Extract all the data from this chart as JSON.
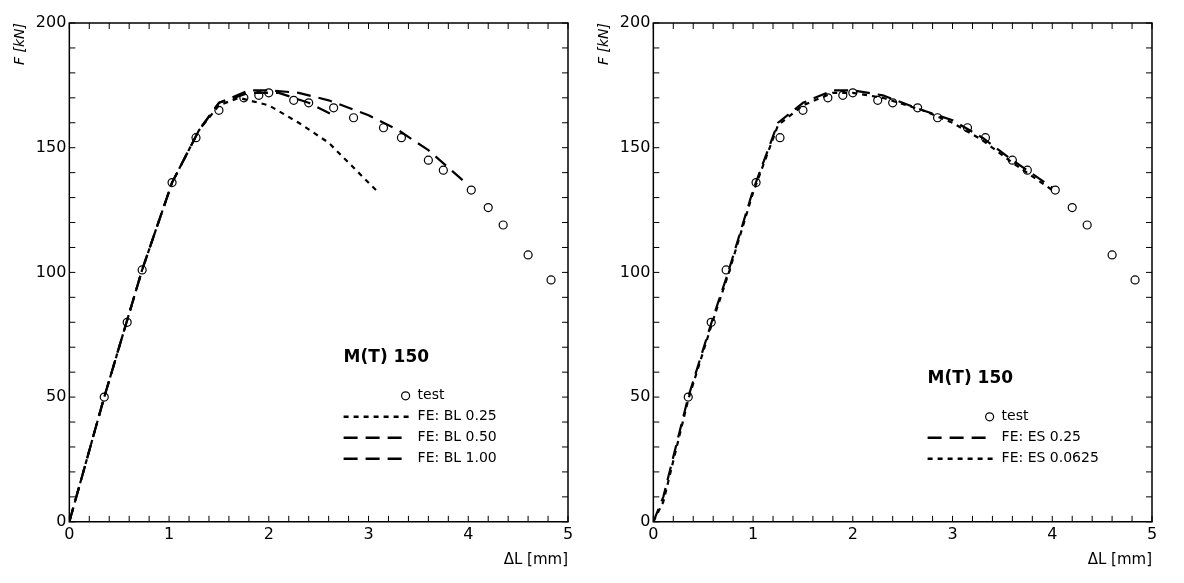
{
  "chart_data": [
    {
      "type": "line",
      "xlabel": "ΔL [mm]",
      "ylabel": "F [kN]",
      "legend_title": "M(T) 150",
      "legend": "bottom right",
      "grid": false,
      "xlim": [
        0,
        5
      ],
      "ylim": [
        0,
        200
      ],
      "xticks": [
        0,
        {
          "value": 0.2,
          "label": null
        },
        {
          "value": 0.4,
          "label": null
        },
        {
          "value": 0.6,
          "label": null
        },
        {
          "value": 0.8,
          "label": null
        },
        1,
        {
          "value": 1.2,
          "label": null
        },
        {
          "value": 1.4,
          "label": null
        },
        {
          "value": 1.6,
          "label": null
        },
        {
          "value": 1.8,
          "label": null
        },
        2,
        {
          "value": 2.2,
          "label": null
        },
        {
          "value": 2.4,
          "label": null
        },
        {
          "value": 2.6,
          "label": null
        },
        {
          "value": 2.8,
          "label": null
        },
        3,
        {
          "value": 3.2,
          "label": null
        },
        {
          "value": 3.4,
          "label": null
        },
        {
          "value": 3.6,
          "label": null
        },
        {
          "value": 3.8,
          "label": null
        },
        4,
        {
          "value": 4.2,
          "label": null
        },
        {
          "value": 4.4,
          "label": null
        },
        {
          "value": 4.6,
          "label": null
        },
        {
          "value": 4.8,
          "label": null
        },
        5
      ],
      "yticks": [
        0,
        {
          "value": 10,
          "label": null
        },
        {
          "value": 20,
          "label": null
        },
        {
          "value": 30,
          "label": null
        },
        {
          "value": 40,
          "label": null
        },
        50,
        {
          "value": 60,
          "label": null
        },
        {
          "value": 70,
          "label": null
        },
        {
          "value": 80,
          "label": null
        },
        {
          "value": 90,
          "label": null
        },
        100,
        {
          "value": 110,
          "label": null
        },
        {
          "value": 120,
          "label": null
        },
        {
          "value": 130,
          "label": null
        },
        {
          "value": 140,
          "label": null
        },
        150,
        {
          "value": 160,
          "label": null
        },
        {
          "value": 170,
          "label": null
        },
        {
          "value": 180,
          "label": null
        },
        {
          "value": 190,
          "label": null
        },
        200
      ],
      "series": [
        {
          "name": "test",
          "type": "scatter",
          "marker": "circle",
          "color": "#000000",
          "x": [
            0.35,
            0.58,
            0.73,
            1.03,
            1.27,
            1.5,
            1.75,
            1.9,
            2.0,
            2.25,
            2.4,
            2.65,
            2.85,
            3.15,
            3.33,
            3.6,
            3.75,
            4.03,
            4.2,
            4.35,
            4.6,
            4.83
          ],
          "values": [
            50,
            80,
            101,
            136,
            154,
            165,
            170,
            171,
            172,
            169,
            168,
            166,
            162,
            158,
            154,
            145,
            141,
            133,
            126,
            119,
            107,
            97
          ]
        },
        {
          "name": "FE: BL 0.25",
          "type": "line",
          "line_style": "dotted",
          "color": "#000000",
          "x": [
            0,
            0.35,
            0.73,
            1.03,
            1.3,
            1.5,
            1.7,
            2.0,
            2.3,
            2.6,
            2.9,
            3.1
          ],
          "values": [
            0,
            50,
            101,
            136,
            157,
            167,
            170,
            167,
            160,
            152,
            140,
            132
          ]
        },
        {
          "name": "FE: BL 0.50",
          "type": "line",
          "line_style": "dashed",
          "color": "#000000",
          "x": [
            0,
            0.35,
            0.73,
            1.03,
            1.3,
            1.5,
            1.8,
            2.1,
            2.4,
            2.65
          ],
          "values": [
            0,
            50,
            101,
            136,
            157,
            168,
            172,
            172,
            168,
            163
          ]
        },
        {
          "name": "FE: BL 1.00",
          "type": "line",
          "line_style": "dashed",
          "color": "#000000",
          "x": [
            0,
            0.35,
            0.73,
            1.03,
            1.3,
            1.5,
            1.8,
            2.0,
            2.3,
            2.6,
            3.0,
            3.3,
            3.6,
            4.0
          ],
          "values": [
            0,
            50,
            101,
            136,
            157,
            168,
            173,
            173,
            172,
            169,
            163,
            157,
            149,
            135
          ]
        }
      ]
    },
    {
      "type": "line",
      "xlabel": "ΔL [mm]",
      "ylabel": "F [kN]",
      "legend_title": "M(T) 150",
      "legend": "bottom right",
      "grid": false,
      "xlim": [
        0,
        5
      ],
      "ylim": [
        0,
        200
      ],
      "xticks": [
        0,
        {
          "value": 0.2,
          "label": null
        },
        {
          "value": 0.4,
          "label": null
        },
        {
          "value": 0.6,
          "label": null
        },
        {
          "value": 0.8,
          "label": null
        },
        1,
        {
          "value": 1.2,
          "label": null
        },
        {
          "value": 1.4,
          "label": null
        },
        {
          "value": 1.6,
          "label": null
        },
        {
          "value": 1.8,
          "label": null
        },
        2,
        {
          "value": 2.2,
          "label": null
        },
        {
          "value": 2.4,
          "label": null
        },
        {
          "value": 2.6,
          "label": null
        },
        {
          "value": 2.8,
          "label": null
        },
        3,
        {
          "value": 3.2,
          "label": null
        },
        {
          "value": 3.4,
          "label": null
        },
        {
          "value": 3.6,
          "label": null
        },
        {
          "value": 3.8,
          "label": null
        },
        4,
        {
          "value": 4.2,
          "label": null
        },
        {
          "value": 4.4,
          "label": null
        },
        {
          "value": 4.6,
          "label": null
        },
        {
          "value": 4.8,
          "label": null
        },
        5
      ],
      "yticks": [
        0,
        {
          "value": 10,
          "label": null
        },
        {
          "value": 20,
          "label": null
        },
        {
          "value": 30,
          "label": null
        },
        {
          "value": 40,
          "label": null
        },
        50,
        {
          "value": 60,
          "label": null
        },
        {
          "value": 70,
          "label": null
        },
        {
          "value": 80,
          "label": null
        },
        {
          "value": 90,
          "label": null
        },
        100,
        {
          "value": 110,
          "label": null
        },
        {
          "value": 120,
          "label": null
        },
        {
          "value": 130,
          "label": null
        },
        {
          "value": 140,
          "label": null
        },
        150,
        {
          "value": 160,
          "label": null
        },
        {
          "value": 170,
          "label": null
        },
        {
          "value": 180,
          "label": null
        },
        {
          "value": 190,
          "label": null
        },
        200
      ],
      "series": [
        {
          "name": "test",
          "type": "scatter",
          "marker": "circle",
          "color": "#000000",
          "x": [
            0.35,
            0.58,
            0.73,
            1.03,
            1.27,
            1.5,
            1.75,
            1.9,
            2.0,
            2.25,
            2.4,
            2.65,
            2.85,
            3.15,
            3.33,
            3.6,
            3.75,
            4.03,
            4.2,
            4.35,
            4.6,
            4.83
          ],
          "values": [
            50,
            80,
            101,
            136,
            154,
            165,
            170,
            171,
            172,
            169,
            168,
            166,
            162,
            158,
            154,
            145,
            141,
            133,
            126,
            119,
            107,
            97
          ]
        },
        {
          "name": "FE: ES 0.25",
          "type": "line",
          "line_style": "dashed",
          "color": "#000000",
          "x": [
            0,
            0.1,
            0.35,
            0.6,
            0.75,
            1.0,
            1.25,
            1.5,
            1.8,
            2.0,
            2.3,
            2.7,
            3.0,
            3.3,
            3.6,
            4.0
          ],
          "values": [
            0,
            10,
            50,
            82,
            100,
            133,
            160,
            168,
            173,
            173,
            171,
            165,
            161,
            154,
            145,
            134
          ]
        },
        {
          "name": "FE: ES 0.0625",
          "type": "line",
          "line_style": "dotted",
          "color": "#000000",
          "x": [
            0,
            0.1,
            0.35,
            0.6,
            0.75,
            1.0,
            1.25,
            1.5,
            1.8,
            2.0,
            2.3,
            2.7,
            3.0,
            3.3,
            3.6,
            4.0
          ],
          "values": [
            0,
            8,
            49,
            81,
            99,
            132,
            159,
            167,
            172,
            172,
            170,
            165,
            160,
            153,
            144,
            133
          ]
        }
      ]
    }
  ]
}
